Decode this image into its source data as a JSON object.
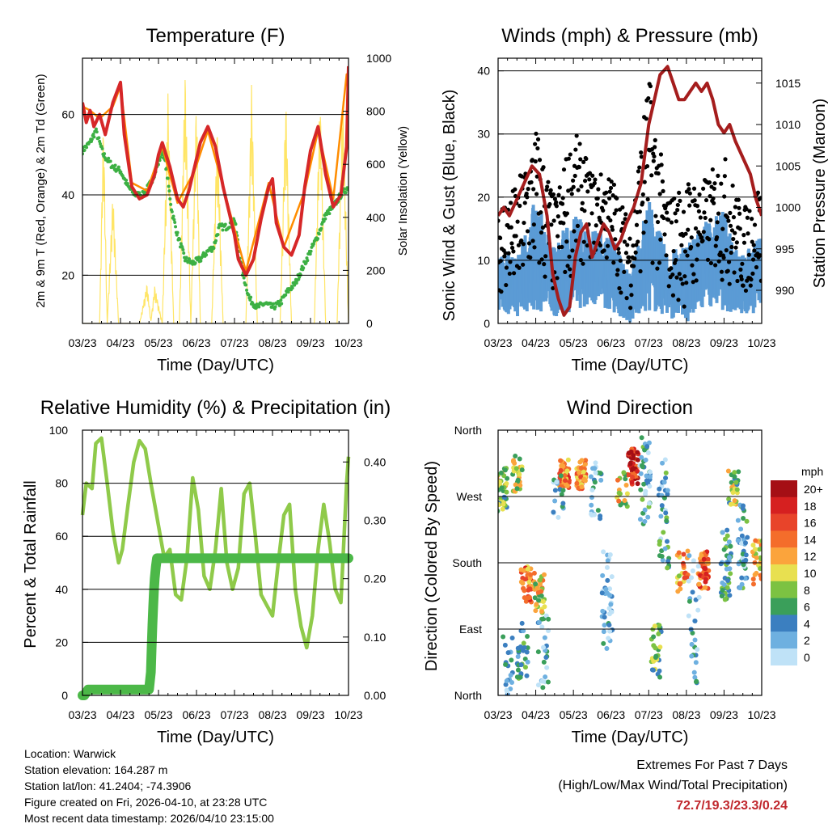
{
  "colors": {
    "temp2m": "#d62728",
    "temp9m": "#ff8c00",
    "dewpoint": "#3cb043",
    "solar": "#ffe566",
    "wind": "#5b9bd5",
    "gust": "#000000",
    "pressure": "#a51d1d",
    "rh": "#8fca4a",
    "precip": "#4cb848",
    "extremes": "#c0272d"
  },
  "chart_data": [
    {
      "id": "temperature",
      "type": "line",
      "title": "Temperature (F)",
      "xlabel": "Time (Day/UTC)",
      "ylabel_left": "2m & 9m T (Red, Orange) & 2m Td (Green)",
      "ylabel_right": "Solar Insolation (Yellow)",
      "x_ticks": [
        "03/23",
        "04/23",
        "05/23",
        "06/23",
        "07/23",
        "08/23",
        "09/23",
        "10/23"
      ],
      "xlim": [
        0,
        7
      ],
      "ylim_left": [
        8,
        74
      ],
      "yticks_left": [
        20,
        40,
        60
      ],
      "ylim_right": [
        0,
        1000
      ],
      "yticks_right": [
        0,
        200,
        400,
        600,
        800,
        1000
      ],
      "series": [
        {
          "name": "2m T",
          "axis": "left",
          "x": [
            0,
            0.1,
            0.2,
            0.3,
            0.45,
            0.6,
            0.8,
            1.0,
            1.1,
            1.3,
            1.5,
            1.7,
            1.9,
            2.0,
            2.1,
            2.3,
            2.5,
            2.65,
            2.8,
            2.95,
            3.1,
            3.3,
            3.5,
            3.7,
            3.9,
            4.0,
            4.1,
            4.3,
            4.5,
            4.7,
            4.9,
            5.0,
            5.1,
            5.3,
            5.5,
            5.7,
            5.85,
            6.0,
            6.2,
            6.4,
            6.6,
            6.8,
            6.95,
            7.0
          ],
          "values": [
            63,
            58,
            61,
            57,
            60,
            55,
            63,
            68,
            55,
            42,
            39,
            40,
            45,
            50,
            53,
            47,
            39,
            37,
            41,
            47,
            53,
            57,
            52,
            42,
            34,
            30,
            24,
            20,
            24,
            34,
            42,
            44,
            33,
            27,
            25,
            30,
            42,
            51,
            57,
            45,
            37,
            40,
            52,
            72
          ]
        },
        {
          "name": "9m T",
          "axis": "left",
          "x": [
            0,
            0.2,
            0.45,
            0.8,
            1.0,
            1.3,
            1.7,
            2.1,
            2.5,
            2.95,
            3.3,
            3.9,
            4.3,
            4.9,
            5.3,
            5.85,
            6.2,
            6.6,
            6.95,
            7.0
          ],
          "values": [
            62,
            61,
            59,
            62,
            67,
            43,
            41,
            52,
            38,
            46,
            56,
            35,
            21,
            43,
            27,
            41,
            56,
            39,
            70,
            69
          ]
        },
        {
          "name": "2m Td",
          "axis": "left",
          "x": [
            0,
            0.2,
            0.35,
            0.55,
            0.8,
            1.0,
            1.2,
            1.4,
            1.6,
            1.8,
            2.0,
            2.1,
            2.2,
            2.35,
            2.5,
            2.7,
            2.9,
            3.1,
            3.3,
            3.45,
            3.6,
            3.8,
            4.0,
            4.2,
            4.4,
            4.6,
            4.8,
            5.0,
            5.2,
            5.4,
            5.6,
            5.8,
            6.0,
            6.2,
            6.4,
            6.6,
            6.8,
            7.0
          ],
          "values": [
            51,
            53,
            56,
            50,
            47,
            46,
            42,
            40,
            40,
            43,
            48,
            51,
            47,
            36,
            30,
            24,
            23,
            24,
            26,
            27,
            32,
            32,
            34,
            21,
            14,
            12,
            13,
            12,
            13,
            16,
            18,
            22,
            26,
            30,
            35,
            37,
            40,
            42
          ]
        },
        {
          "name": "Solar",
          "axis": "right",
          "x": [
            0,
            0.3,
            0.45,
            0.55,
            0.65,
            0.8,
            0.95,
            1.05,
            1.3,
            1.5,
            1.7,
            1.8,
            1.9,
            2.1,
            2.25,
            2.4,
            2.55,
            2.7,
            2.85,
            3.0,
            3.1,
            3.25,
            3.4,
            3.55,
            3.7,
            3.85,
            4.0,
            4.15,
            4.3,
            4.45,
            4.6,
            4.75,
            4.9,
            5.05,
            5.2,
            5.35,
            5.5,
            5.65,
            5.8,
            5.95,
            6.1,
            6.25,
            6.4,
            6.55,
            6.7,
            6.85,
            7.0
          ],
          "values": [
            0,
            0,
            0,
            780,
            0,
            500,
            0,
            0,
            0,
            0,
            150,
            10,
            140,
            0,
            870,
            0,
            0,
            960,
            0,
            880,
            0,
            0,
            0,
            760,
            0,
            0,
            0,
            0,
            0,
            900,
            0,
            0,
            0,
            0,
            0,
            860,
            0,
            0,
            0,
            0,
            0,
            880,
            0,
            0,
            0,
            900,
            0
          ]
        }
      ]
    },
    {
      "id": "winds",
      "type": "scatter",
      "title": "Winds (mph) & Pressure (mb)",
      "xlabel": "Time (Day/UTC)",
      "ylabel_left": "Sonic Wind & Gust (Blue, Black)",
      "ylabel_right": "Station Pressure (Maroon)",
      "x_ticks": [
        "03/23",
        "04/23",
        "05/23",
        "06/23",
        "07/23",
        "08/23",
        "09/23",
        "10/23"
      ],
      "xlim": [
        0,
        7
      ],
      "ylim_left": [
        0,
        42
      ],
      "yticks_left": [
        0,
        10,
        20,
        30,
        40
      ],
      "ylim_right": [
        986,
        1018
      ],
      "yticks_right": [
        990,
        995,
        1000,
        1005,
        1010,
        1015
      ],
      "wind_envelope": {
        "x": [
          0,
          0.5,
          1.0,
          1.5,
          2.0,
          2.5,
          3.0,
          3.5,
          4.0,
          4.5,
          5.0,
          5.5,
          6.0,
          6.5,
          7.0
        ],
        "low": [
          2,
          1,
          2,
          1,
          2,
          3,
          2,
          0,
          2,
          1,
          0,
          3,
          2,
          1,
          2
        ],
        "high": [
          12,
          11,
          20,
          12,
          18,
          15,
          14,
          8,
          20,
          11,
          13,
          16,
          18,
          11,
          14
        ]
      },
      "gust_envelope": {
        "x": [
          0,
          0.5,
          1.0,
          1.5,
          2.0,
          2.5,
          3.0,
          3.5,
          4.0,
          4.5,
          5.0,
          5.5,
          6.0,
          6.5,
          7.0
        ],
        "low": [
          4,
          3,
          6,
          3,
          8,
          10,
          8,
          2,
          10,
          4,
          2,
          8,
          6,
          4,
          6
        ],
        "high": [
          20,
          22,
          32,
          20,
          31,
          24,
          24,
          16,
          40,
          20,
          23,
          23,
          27,
          18,
          24
        ]
      },
      "series": [
        {
          "name": "Station Pressure",
          "axis": "right",
          "x": [
            0,
            0.15,
            0.3,
            0.5,
            0.7,
            0.9,
            1.1,
            1.3,
            1.45,
            1.6,
            1.75,
            1.9,
            2.05,
            2.2,
            2.35,
            2.5,
            2.65,
            2.8,
            2.95,
            3.1,
            3.25,
            3.4,
            3.6,
            3.8,
            4.0,
            4.15,
            4.3,
            4.5,
            4.65,
            4.8,
            4.95,
            5.1,
            5.25,
            5.4,
            5.55,
            5.7,
            5.85,
            6.0,
            6.15,
            6.3,
            6.5,
            6.7,
            6.85,
            7.0
          ],
          "values": [
            999,
            1000,
            999,
            1001,
            1003,
            1005,
            1004,
            999,
            992,
            989,
            987,
            988,
            994,
            997,
            998,
            994,
            996,
            998,
            997,
            995,
            996,
            998,
            1000,
            1003,
            1010,
            1013,
            1016,
            1017,
            1015,
            1013,
            1013,
            1014,
            1015,
            1014,
            1015,
            1013,
            1010,
            1009,
            1010,
            1008,
            1006,
            1004,
            1001,
            999
          ]
        }
      ]
    },
    {
      "id": "humidity",
      "type": "line",
      "title": "Relative Humidity (%) & Precipitation (in)",
      "xlabel": "Time (Day/UTC)",
      "ylabel_left": "Percent & Total Rainfall",
      "x_ticks": [
        "03/23",
        "04/23",
        "05/23",
        "06/23",
        "07/23",
        "08/23",
        "09/23",
        "10/23"
      ],
      "xlim": [
        0,
        7
      ],
      "ylim_left": [
        0,
        100
      ],
      "yticks_left": [
        0,
        20,
        40,
        60,
        80,
        100
      ],
      "ylim_right": [
        0,
        0.4545
      ],
      "yticks_right": [
        0.0,
        0.1,
        0.2,
        0.3,
        0.4
      ],
      "series": [
        {
          "name": "RH",
          "axis": "left",
          "x": [
            0,
            0.1,
            0.25,
            0.35,
            0.5,
            0.65,
            0.8,
            0.95,
            1.05,
            1.2,
            1.35,
            1.5,
            1.65,
            1.8,
            1.95,
            2.05,
            2.15,
            2.3,
            2.45,
            2.6,
            2.75,
            2.9,
            3.05,
            3.2,
            3.35,
            3.5,
            3.65,
            3.8,
            3.95,
            4.1,
            4.25,
            4.4,
            4.55,
            4.7,
            4.85,
            5.0,
            5.15,
            5.3,
            5.45,
            5.6,
            5.75,
            5.9,
            6.05,
            6.2,
            6.35,
            6.5,
            6.65,
            6.8,
            6.95,
            7.0
          ],
          "values": [
            68,
            80,
            78,
            95,
            97,
            80,
            62,
            50,
            55,
            72,
            88,
            96,
            93,
            80,
            68,
            60,
            52,
            55,
            38,
            36,
            52,
            82,
            70,
            45,
            40,
            55,
            78,
            50,
            40,
            48,
            76,
            80,
            60,
            38,
            34,
            30,
            50,
            68,
            72,
            40,
            26,
            18,
            30,
            55,
            72,
            58,
            40,
            35,
            80,
            90
          ]
        },
        {
          "name": "Precipitation",
          "axis": "right",
          "x": [
            0,
            0.05,
            0.15,
            0.25,
            0.35,
            0.45,
            0.55,
            0.65,
            0.75,
            0.85,
            0.95,
            1.05,
            1.15,
            1.25,
            1.35,
            1.45,
            1.55,
            1.65,
            1.75,
            1.8,
            1.82,
            1.84,
            1.86,
            1.88,
            1.9,
            1.93,
            1.96,
            2.0,
            2.5,
            3.0,
            3.5,
            4.0,
            4.5,
            5.0,
            5.5,
            6.0,
            6.5,
            7.0
          ],
          "values": [
            0,
            0,
            0.01,
            0.01,
            0.01,
            0.01,
            0.01,
            0.01,
            0.01,
            0.01,
            0.01,
            0.01,
            0.01,
            0.01,
            0.01,
            0.01,
            0.01,
            0.01,
            0.01,
            0.04,
            0.08,
            0.12,
            0.15,
            0.18,
            0.2,
            0.22,
            0.235,
            0.235,
            0.235,
            0.235,
            0.235,
            0.235,
            0.235,
            0.235,
            0.235,
            0.235,
            0.235,
            0.235
          ]
        }
      ]
    },
    {
      "id": "direction",
      "type": "scatter",
      "title": "Wind Direction",
      "xlabel": "Time (Day/UTC)",
      "ylabel_left": "Direction (Colored By Speed)",
      "x_ticks": [
        "03/23",
        "04/23",
        "05/23",
        "06/23",
        "07/23",
        "08/23",
        "09/23",
        "10/23"
      ],
      "xlim": [
        0,
        7
      ],
      "ylim_left": [
        0,
        360
      ],
      "ytick_labels": [
        "North",
        "East",
        "South",
        "West",
        "North"
      ],
      "ytick_values": [
        0,
        90,
        180,
        270,
        360
      ],
      "legend": {
        "title": "mph",
        "labels": [
          "20+",
          "18",
          "16",
          "14",
          "12",
          "10",
          "8",
          "6",
          "4",
          "2",
          "0"
        ],
        "colors": [
          "#a50f15",
          "#d62020",
          "#e8442a",
          "#f46d2b",
          "#fba43c",
          "#e8e050",
          "#7cc242",
          "#3a9f5a",
          "#3b7fc0",
          "#6eb0e0",
          "#bfe2f7"
        ]
      },
      "clusters": [
        {
          "x": 0.1,
          "dir": 280,
          "spread": 30,
          "speed": 8,
          "n": 40
        },
        {
          "x": 0.25,
          "dir": 40,
          "spread": 40,
          "speed": 4,
          "n": 20
        },
        {
          "x": 0.5,
          "dir": 300,
          "spread": 25,
          "speed": 9,
          "n": 30
        },
        {
          "x": 0.75,
          "dir": 150,
          "spread": 25,
          "speed": 14,
          "n": 40
        },
        {
          "x": 0.65,
          "dir": 60,
          "spread": 40,
          "speed": 5,
          "n": 30
        },
        {
          "x": 1.1,
          "dir": 140,
          "spread": 30,
          "speed": 10,
          "n": 35
        },
        {
          "x": 1.2,
          "dir": 60,
          "spread": 50,
          "speed": 3,
          "n": 25
        },
        {
          "x": 1.75,
          "dir": 300,
          "spread": 20,
          "speed": 14,
          "n": 45
        },
        {
          "x": 1.6,
          "dir": 270,
          "spread": 30,
          "speed": 3,
          "n": 20
        },
        {
          "x": 2.2,
          "dir": 300,
          "spread": 20,
          "speed": 13,
          "n": 40
        },
        {
          "x": 2.6,
          "dir": 280,
          "spread": 40,
          "speed": 3,
          "n": 25
        },
        {
          "x": 2.9,
          "dir": 130,
          "spread": 70,
          "speed": 2,
          "n": 40
        },
        {
          "x": 3.3,
          "dir": 280,
          "spread": 25,
          "speed": 10,
          "n": 20
        },
        {
          "x": 3.6,
          "dir": 310,
          "spread": 25,
          "speed": 17,
          "n": 50
        },
        {
          "x": 3.9,
          "dir": 290,
          "spread": 60,
          "speed": 4,
          "n": 40
        },
        {
          "x": 4.2,
          "dir": 60,
          "spread": 40,
          "speed": 7,
          "n": 30
        },
        {
          "x": 4.4,
          "dir": 250,
          "spread": 80,
          "speed": 4,
          "n": 40
        },
        {
          "x": 4.9,
          "dir": 170,
          "spread": 30,
          "speed": 12,
          "n": 25
        },
        {
          "x": 5.45,
          "dir": 170,
          "spread": 25,
          "speed": 15,
          "n": 50
        },
        {
          "x": 5.2,
          "dir": 100,
          "spread": 90,
          "speed": 3,
          "n": 30
        },
        {
          "x": 6.05,
          "dir": 180,
          "spread": 50,
          "speed": 5,
          "n": 45
        },
        {
          "x": 6.25,
          "dir": 280,
          "spread": 25,
          "speed": 8,
          "n": 25
        },
        {
          "x": 6.5,
          "dir": 200,
          "spread": 60,
          "speed": 4,
          "n": 40
        },
        {
          "x": 6.9,
          "dir": 180,
          "spread": 30,
          "speed": 11,
          "n": 30
        }
      ]
    }
  ],
  "info": {
    "location": "Location: Warwick",
    "elevation": "Station elevation: 164.287 m",
    "latlon": "Station lat/lon: 41.2404; -74.3906",
    "created": "Figure created on Fri, 2026-04-10, at 23:28 UTC",
    "recent": "Most recent data timestamp: 2026/04/10 23:15:00"
  },
  "extremes": {
    "title": "Extremes For Past 7 Days",
    "subtitle": "(High/Low/Max Wind/Total Precipitation)",
    "values": "72.7/19.3/23.3/0.24"
  }
}
